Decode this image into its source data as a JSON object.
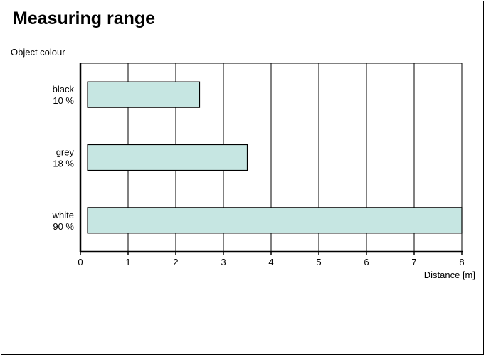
{
  "page": {
    "title": "Measuring range"
  },
  "chart_data": {
    "type": "bar",
    "orientation": "horizontal",
    "title": "Measuring range",
    "ylabel": "Object colour",
    "xlabel": "Distance [m]",
    "xlim": [
      0,
      8
    ],
    "xticks": [
      0,
      1,
      2,
      3,
      4,
      5,
      6,
      7,
      8
    ],
    "grid": "vertical",
    "bar_color": "#c6e6e2",
    "categories": [
      {
        "name": "black",
        "reflectance": "10 %",
        "start": 0.15,
        "end": 2.5
      },
      {
        "name": "grey",
        "reflectance": "18 %",
        "start": 0.15,
        "end": 3.5
      },
      {
        "name": "white",
        "reflectance": "90 %",
        "start": 0.15,
        "end": 8
      }
    ]
  }
}
